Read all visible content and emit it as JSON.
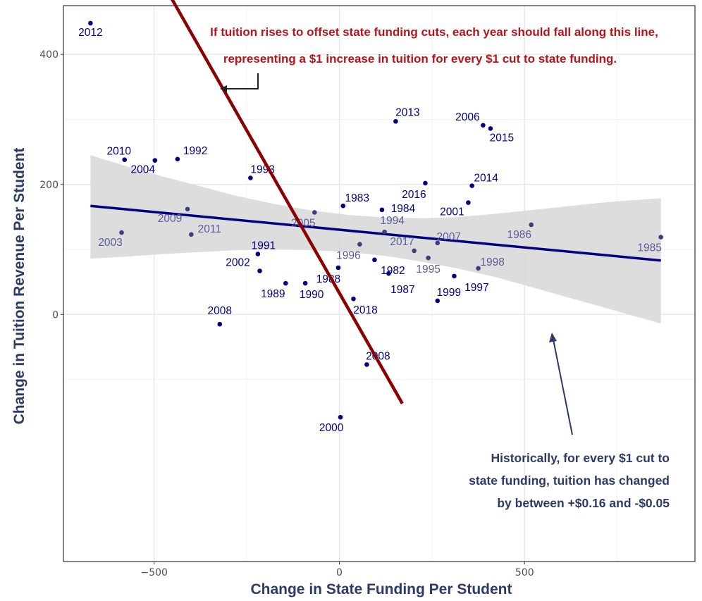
{
  "chart_data": {
    "type": "scatter",
    "title": "",
    "xlabel": "Change in State Funding Per Student",
    "ylabel": "Change in Tuition Revenue Per Student",
    "xlim": [
      -745,
      960
    ],
    "ylim": [
      -380,
      475
    ],
    "xticks": [
      -500,
      0,
      500
    ],
    "xtick_labels": [
      "−500",
      "0",
      "500"
    ],
    "yticks": [
      0,
      200,
      400
    ],
    "ytick_labels": [
      "0",
      "200",
      "400"
    ],
    "grid": true,
    "points": [
      {
        "label": "2012",
        "x": -672,
        "y": 448
      },
      {
        "label": "2010",
        "x": -580,
        "y": 238
      },
      {
        "label": "2004",
        "x": -498,
        "y": 237
      },
      {
        "label": "1992",
        "x": -437,
        "y": 239
      },
      {
        "label": "1993",
        "x": -240,
        "y": 210
      },
      {
        "label": "2009",
        "x": -410,
        "y": 162
      },
      {
        "label": "2003",
        "x": -588,
        "y": 126
      },
      {
        "label": "2011",
        "x": -400,
        "y": 123
      },
      {
        "label": "1991",
        "x": -220,
        "y": 93
      },
      {
        "label": "2002",
        "x": -215,
        "y": 67
      },
      {
        "label": "1989",
        "x": -145,
        "y": 48
      },
      {
        "label": "1990",
        "x": -92,
        "y": 48
      },
      {
        "label": "1988",
        "x": -3,
        "y": 72
      },
      {
        "label": "2008",
        "x": -323,
        "y": -15
      },
      {
        "label": "2005",
        "x": -67,
        "y": 157
      },
      {
        "label": "1983",
        "x": 10,
        "y": 167
      },
      {
        "label": "1996",
        "x": 55,
        "y": 108
      },
      {
        "label": "1982",
        "x": 95,
        "y": 84
      },
      {
        "label": "1987",
        "x": 133,
        "y": 63
      },
      {
        "label": "2018",
        "x": 38,
        "y": 24
      },
      {
        "label": "2000",
        "x": 3,
        "y": -158
      },
      {
        "label": "2008",
        "x": 74,
        "y": -77
      },
      {
        "label": "1984",
        "x": 115,
        "y": 161
      },
      {
        "label": "1994",
        "x": 122,
        "y": 127
      },
      {
        "label": "2017",
        "x": 202,
        "y": 98
      },
      {
        "label": "2013",
        "x": 152,
        "y": 297
      },
      {
        "label": "2016",
        "x": 232,
        "y": 202
      },
      {
        "label": "2007",
        "x": 265,
        "y": 110
      },
      {
        "label": "1995",
        "x": 240,
        "y": 87
      },
      {
        "label": "1999",
        "x": 265,
        "y": 21
      },
      {
        "label": "1997",
        "x": 310,
        "y": 59
      },
      {
        "label": "1998",
        "x": 375,
        "y": 71
      },
      {
        "label": "2001",
        "x": 348,
        "y": 172
      },
      {
        "label": "2014",
        "x": 358,
        "y": 198
      },
      {
        "label": "2006",
        "x": 388,
        "y": 291
      },
      {
        "label": "2015",
        "x": 408,
        "y": 286
      },
      {
        "label": "1986",
        "x": 518,
        "y": 138
      },
      {
        "label": "1985",
        "x": 868,
        "y": 119
      }
    ],
    "regression_line": {
      "x": [
        -672,
        868
      ],
      "y": [
        167,
        83
      ]
    },
    "confidence_band": {
      "x": [
        -672,
        -575,
        -475,
        -375,
        -275,
        -175,
        -75,
        25,
        125,
        225,
        325,
        425,
        525,
        625,
        725,
        868
      ],
      "upper": [
        245,
        228,
        212,
        197,
        182,
        170,
        160,
        153,
        149,
        148,
        150,
        155,
        161,
        167,
        173,
        179
      ],
      "lower": [
        86,
        89,
        93,
        96,
        99,
        100,
        99,
        96,
        90,
        81,
        70,
        57,
        41,
        25,
        9,
        -14
      ]
    },
    "reference_line": {
      "x": [
        -484,
        170
      ],
      "y": [
        517,
        -137
      ]
    },
    "annotations": {
      "top_lines": [
        "If tuition rises to offset state funding cuts,  each year should fall along this line,",
        "representing a $1 increase in tuition for every $1 cut to state funding."
      ],
      "bottom_lines": [
        "Historically, for every $1 cut to",
        "state funding, tuition has changed",
        "by between +$0.16 and -$0.05"
      ]
    },
    "colors": {
      "point": "#000080",
      "label_dark": "#000080",
      "label_light": "#5c5c9a",
      "regression": "#000080",
      "band": "#d9d9d9",
      "reference": "#8b0000",
      "annotation_top": "#b3151b",
      "annotation_bottom": "#2b3b66",
      "grid": "#e6e6e6",
      "panel_border": "#333333"
    }
  }
}
